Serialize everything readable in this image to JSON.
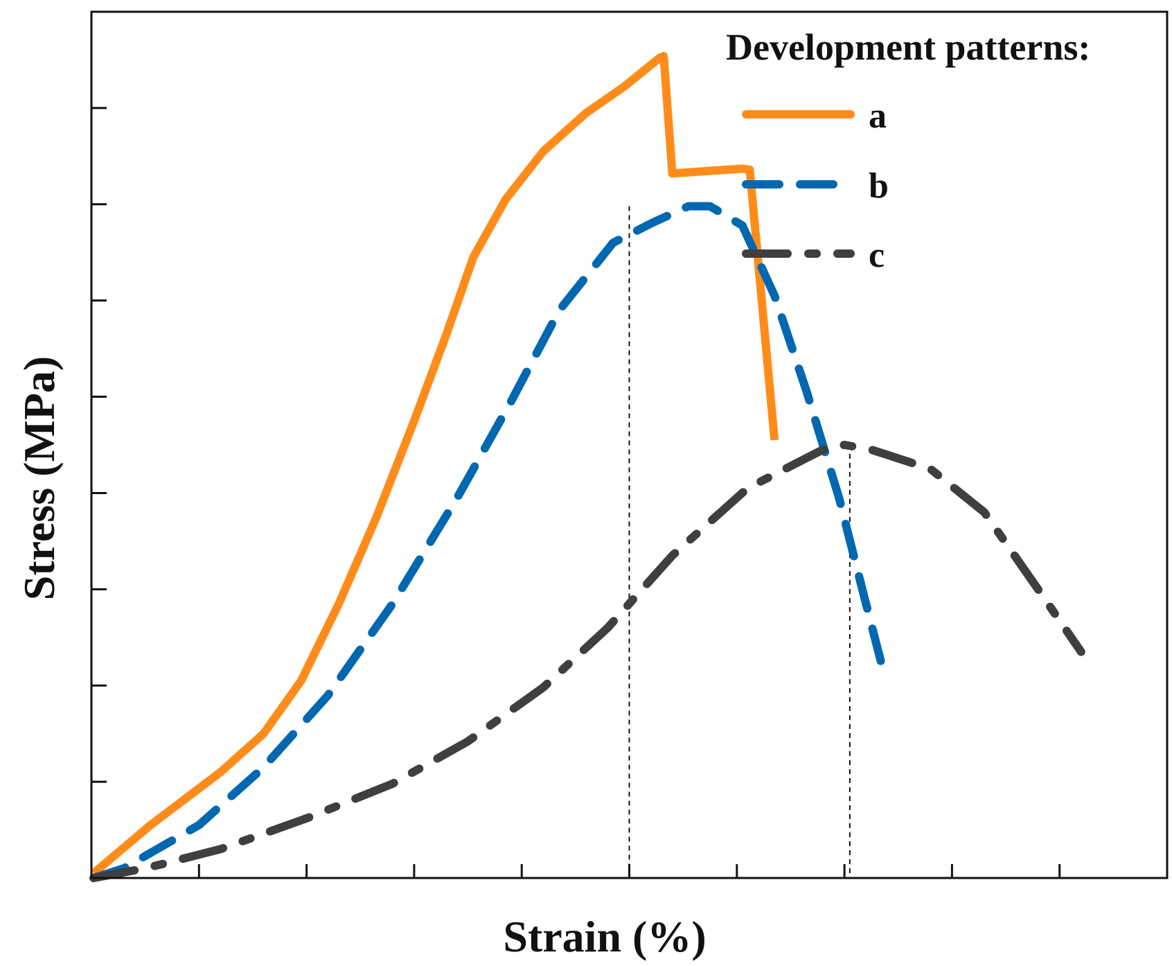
{
  "chart_data": {
    "type": "line",
    "title": "",
    "xlabel": "Strain (%)",
    "ylabel": "Stress (MPa)",
    "xlim": [
      0,
      10
    ],
    "ylim": [
      0,
      9
    ],
    "x_ticks_major": [
      1,
      2,
      3,
      4,
      5,
      6,
      7,
      8,
      9
    ],
    "y_ticks_major": [
      1,
      2,
      3,
      4,
      5,
      6,
      7,
      8
    ],
    "tick_labels_shown": false,
    "legend": {
      "title": "Development patterns:",
      "placement": "top-right"
    },
    "series": [
      {
        "name": "a",
        "style": "solid",
        "color": "#FF8C1A",
        "points": [
          [
            0.02,
            0.05
          ],
          [
            0.55,
            0.55
          ],
          [
            1.2,
            1.1
          ],
          [
            1.6,
            1.5
          ],
          [
            1.95,
            2.05
          ],
          [
            2.3,
            2.85
          ],
          [
            2.65,
            3.75
          ],
          [
            3.0,
            4.75
          ],
          [
            3.3,
            5.65
          ],
          [
            3.55,
            6.45
          ],
          [
            3.85,
            7.05
          ],
          [
            4.2,
            7.55
          ],
          [
            4.6,
            7.95
          ],
          [
            4.95,
            8.22
          ],
          [
            5.28,
            8.52
          ],
          [
            5.32,
            8.54
          ],
          [
            5.4,
            7.32
          ],
          [
            6.05,
            7.37
          ],
          [
            6.12,
            7.36
          ],
          [
            6.35,
            4.55
          ]
        ]
      },
      {
        "name": "b",
        "style": "dashed",
        "color": "#0068B0",
        "points": [
          [
            0.02,
            0.0
          ],
          [
            0.3,
            0.1
          ],
          [
            1.0,
            0.55
          ],
          [
            1.6,
            1.15
          ],
          [
            2.2,
            1.9
          ],
          [
            2.8,
            2.85
          ],
          [
            3.4,
            3.95
          ],
          [
            3.9,
            4.95
          ],
          [
            4.35,
            5.9
          ],
          [
            4.85,
            6.6
          ],
          [
            5.2,
            6.8
          ],
          [
            5.55,
            6.98
          ],
          [
            5.75,
            6.98
          ],
          [
            6.05,
            6.78
          ],
          [
            6.35,
            6.05
          ],
          [
            6.65,
            5.05
          ],
          [
            6.95,
            3.95
          ],
          [
            7.2,
            2.85
          ],
          [
            7.35,
            2.2
          ]
        ]
      },
      {
        "name": "c",
        "style": "dash-dot",
        "color": "#3F3F3F",
        "points": [
          [
            0.02,
            0.0
          ],
          [
            0.5,
            0.1
          ],
          [
            1.2,
            0.3
          ],
          [
            2.0,
            0.62
          ],
          [
            2.8,
            0.98
          ],
          [
            3.5,
            1.42
          ],
          [
            4.2,
            1.98
          ],
          [
            4.8,
            2.6
          ],
          [
            5.4,
            3.35
          ],
          [
            6.1,
            4.05
          ],
          [
            6.8,
            4.45
          ],
          [
            7.0,
            4.5
          ],
          [
            7.25,
            4.45
          ],
          [
            7.8,
            4.25
          ],
          [
            8.3,
            3.8
          ],
          [
            8.8,
            3.0
          ],
          [
            9.2,
            2.35
          ]
        ]
      }
    ],
    "reference_lines": [
      {
        "type": "vertical",
        "style": "dotted",
        "x": 5.0,
        "y_from": 0,
        "y_to": 6.98
      },
      {
        "type": "vertical",
        "style": "dotted",
        "x": 7.05,
        "y_from": 0,
        "y_to": 4.5
      }
    ]
  },
  "colors": {
    "series_a": "#FF8C1A",
    "series_b": "#0068B0",
    "series_c": "#3F3F3F",
    "axis": "#111111"
  }
}
